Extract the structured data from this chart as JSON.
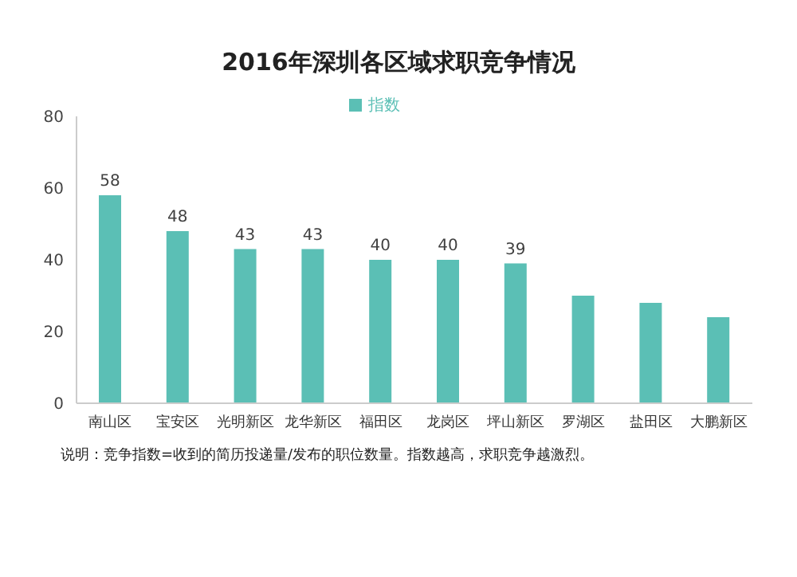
{
  "chart_data": {
    "type": "bar",
    "title": "2016年深圳各区域求职竞争情况",
    "categories": [
      "南山区",
      "宝安区",
      "光明新区",
      "龙华新区",
      "福田区",
      "龙岗区",
      "坪山新区",
      "罗湖区",
      "盐田区",
      "大鹏新区"
    ],
    "series": [
      {
        "name": "指数",
        "color": "#5bbfb5",
        "values": [
          58,
          48,
          43,
          43,
          40,
          40,
          39,
          30,
          28,
          24
        ],
        "value_labels": [
          "58",
          "48",
          "43",
          "43",
          "40",
          "40",
          "39",
          null,
          null,
          null
        ]
      }
    ],
    "ylim": [
      0,
      80
    ],
    "yticks": [
      0,
      20,
      40,
      60,
      80
    ],
    "grid": false,
    "legend": "top",
    "annotations": [
      "说明：竞争指数=收到的简历投递量/发布的职位数量。指数越高，求职竞争越激烈。"
    ]
  }
}
